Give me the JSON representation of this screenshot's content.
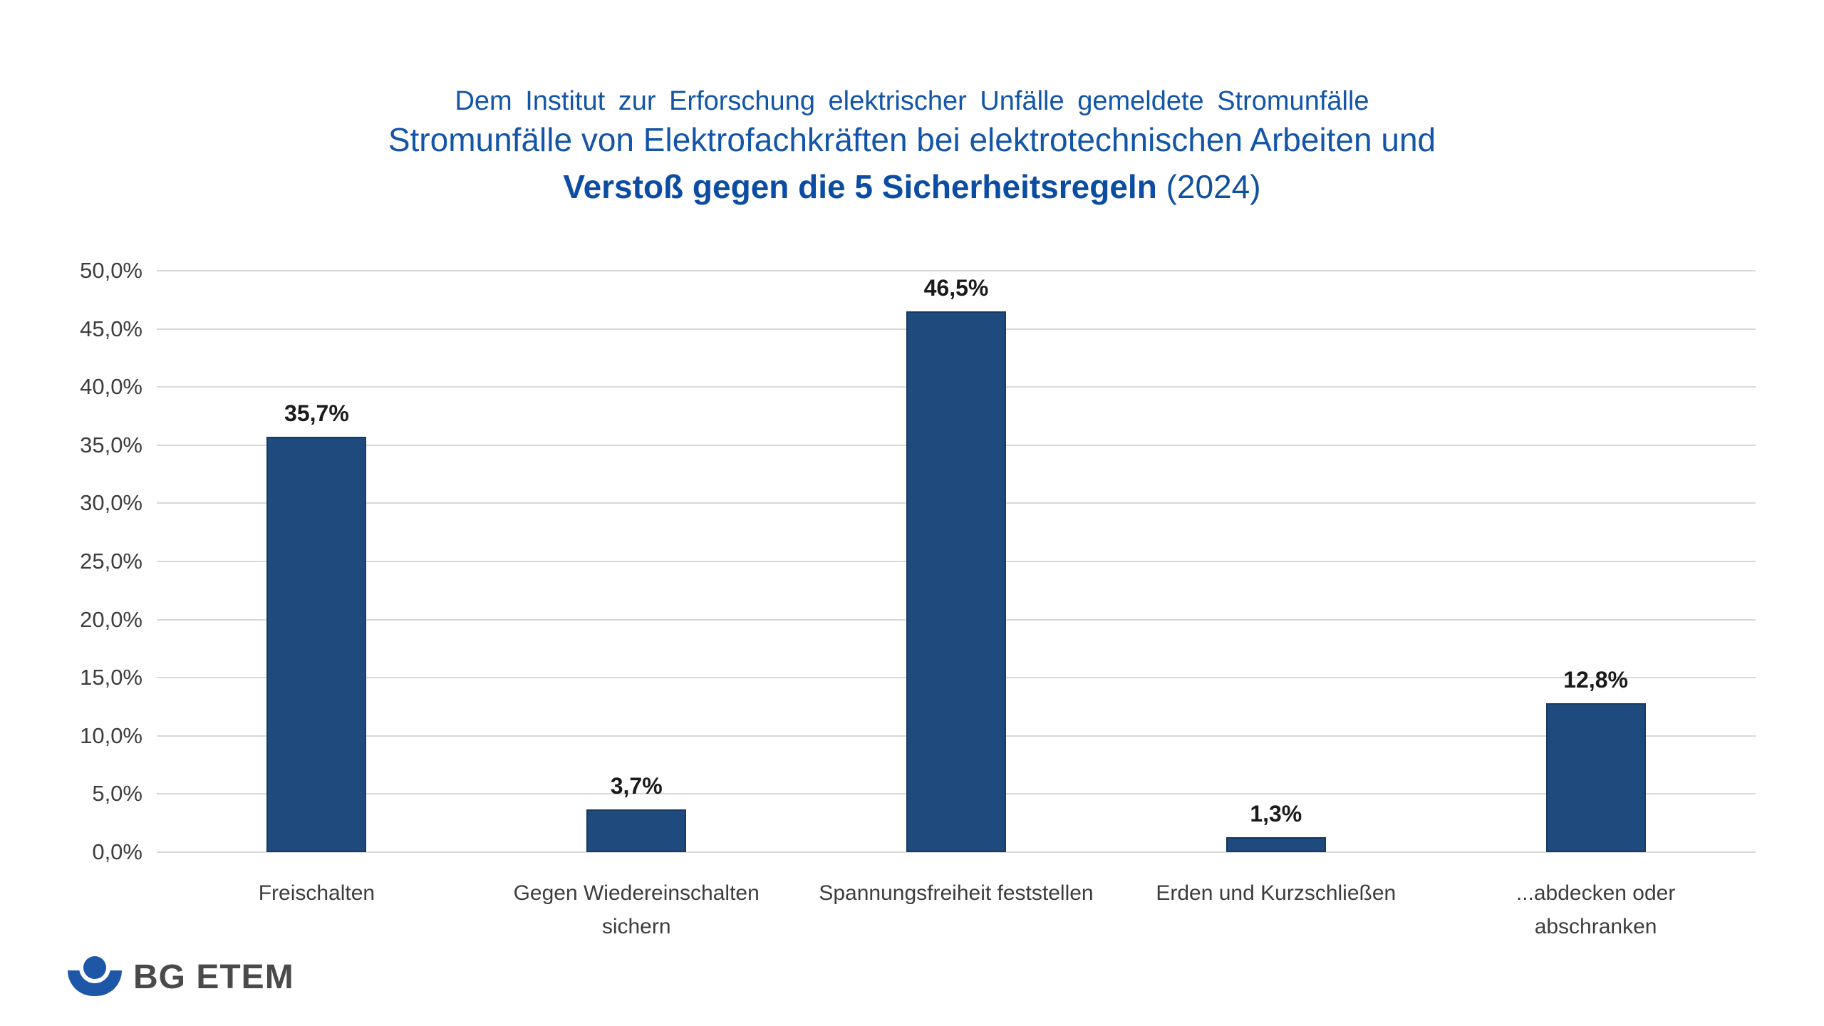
{
  "header": {
    "subtitle": "Dem Institut zur Erforschung elektrischer Unfälle gemeldete Stromunfälle",
    "title_line2": "Stromunfälle von Elektrofachkräften bei elektrotechnischen Arbeiten und",
    "title_line3_bold": "Verstoß gegen die 5 Sicherheitsregeln",
    "title_line3_suffix": " (2024)"
  },
  "colors": {
    "title_blue": "#1355A7",
    "title_blue_bold": "#0B4DA2",
    "bar_fill": "#1E4A7D",
    "bar_border": "#163A64",
    "gridline": "#D9D9D9",
    "axis_text": "#3D3D3D",
    "value_text": "#1A1A1A",
    "logo_blue": "#1F57A8",
    "logo_text_gray": "#4A4A4C"
  },
  "chart_data": {
    "type": "bar",
    "title": "Stromunfälle von Elektrofachkräften bei elektrotechnischen Arbeiten und Verstoß gegen die 5 Sicherheitsregeln (2024)",
    "subtitle": "Dem Institut zur Erforschung elektrischer Unfälle gemeldete Stromunfälle",
    "categories": [
      "Freischalten",
      "Gegen Wiedereinschalten sichern",
      "Spannungsfreiheit feststellen",
      "Erden und Kurzschließen",
      "...abdecken oder abschranken"
    ],
    "category_lines": [
      [
        "Freischalten"
      ],
      [
        "Gegen Wiedereinschalten",
        "sichern"
      ],
      [
        "Spannungsfreiheit feststellen"
      ],
      [
        "Erden und Kurzschließen"
      ],
      [
        "...abdecken oder",
        "abschranken"
      ]
    ],
    "values": [
      35.7,
      3.7,
      46.5,
      1.3,
      12.8
    ],
    "value_labels": [
      "35,7%",
      "3,7%",
      "46,5%",
      "1,3%",
      "12,8%"
    ],
    "xlabel": "",
    "ylabel": "",
    "ylim": [
      0,
      50
    ],
    "ytick_step": 5,
    "y_ticks": [
      {
        "value": 50,
        "label": "50,0%"
      },
      {
        "value": 45,
        "label": "45,0%"
      },
      {
        "value": 40,
        "label": "40,0%"
      },
      {
        "value": 35,
        "label": "35,0%"
      },
      {
        "value": 30,
        "label": "30,0%"
      },
      {
        "value": 25,
        "label": "25,0%"
      },
      {
        "value": 20,
        "label": "20,0%"
      },
      {
        "value": 15,
        "label": "15,0%"
      },
      {
        "value": 10,
        "label": "10,0%"
      },
      {
        "value": 5,
        "label": "5,0%"
      },
      {
        "value": 0,
        "label": "0,0%"
      }
    ],
    "grid": true,
    "legend": false,
    "bar_color": "#1E4A7D"
  },
  "logo": {
    "text": "BG ETEM"
  }
}
